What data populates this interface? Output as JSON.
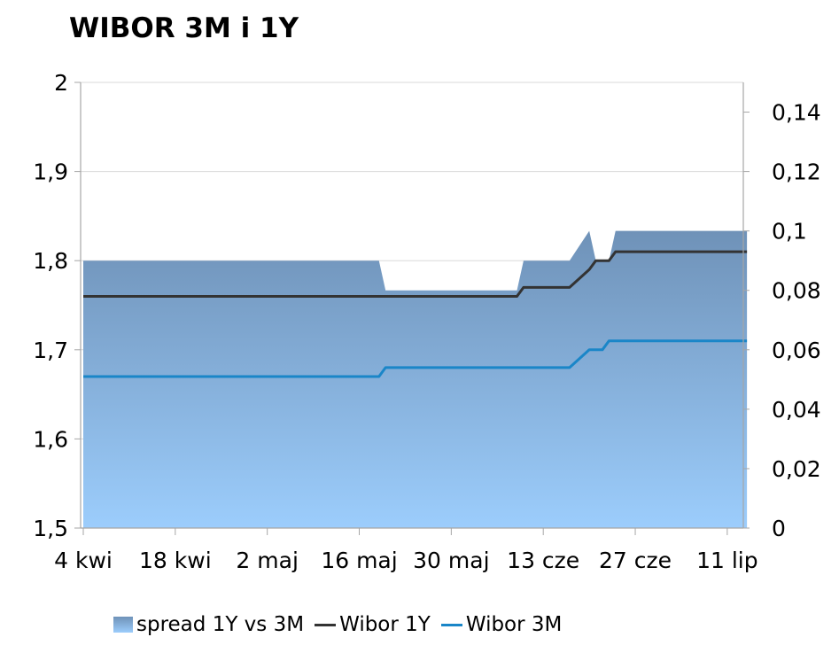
{
  "chart_data": {
    "type": "area+line",
    "title": "WIBOR 3M i 1Y",
    "xlabel": "",
    "ylabel_left": "",
    "ylabel_right": "",
    "x_tick_labels": [
      "4 kwi",
      "18 kwi",
      "2 maj",
      "16 maj",
      "30 maj",
      "13 cze",
      "27 cze",
      "11 lip"
    ],
    "y_left": {
      "range": [
        1.5,
        2
      ],
      "ticks": [
        "1,5",
        "1,6",
        "1,7",
        "1,8",
        "1,9",
        "2"
      ]
    },
    "y_right": {
      "range": [
        0,
        0.15
      ],
      "ticks": [
        "0",
        "0,02",
        "0,04",
        "0,06",
        "0,08",
        "0,1",
        "0,12",
        "0,14"
      ]
    },
    "grid": "horizontal",
    "legend_position": "bottom",
    "colors": {
      "area_top": "#6f92b8",
      "area_bottom": "#9ccdfc",
      "wibor_1y": "#333333",
      "wibor_3m": "#1a86c8"
    },
    "series": [
      {
        "name": "spread 1Y vs 3M",
        "kind": "area",
        "axis": "right",
        "points": [
          [
            "2011-04-04",
            0.09
          ],
          [
            "2011-05-19",
            0.09
          ],
          [
            "2011-05-20",
            0.08
          ],
          [
            "2011-06-09",
            0.08
          ],
          [
            "2011-06-10",
            0.09
          ],
          [
            "2011-06-17",
            0.09
          ],
          [
            "2011-06-20",
            0.1
          ],
          [
            "2011-06-21",
            0.09
          ],
          [
            "2011-06-23",
            0.09
          ],
          [
            "2011-06-24",
            0.1
          ],
          [
            "2011-07-14",
            0.1
          ]
        ]
      },
      {
        "name": "Wibor 1Y",
        "kind": "line",
        "axis": "left",
        "points": [
          [
            "2011-04-04",
            1.76
          ],
          [
            "2011-06-09",
            1.76
          ],
          [
            "2011-06-10",
            1.77
          ],
          [
            "2011-06-17",
            1.77
          ],
          [
            "2011-06-20",
            1.79
          ],
          [
            "2011-06-21",
            1.8
          ],
          [
            "2011-06-23",
            1.8
          ],
          [
            "2011-06-24",
            1.81
          ],
          [
            "2011-07-14",
            1.81
          ]
        ]
      },
      {
        "name": "Wibor 3M",
        "kind": "line",
        "axis": "left",
        "points": [
          [
            "2011-04-04",
            1.67
          ],
          [
            "2011-05-19",
            1.67
          ],
          [
            "2011-05-20",
            1.68
          ],
          [
            "2011-06-17",
            1.68
          ],
          [
            "2011-06-20",
            1.7
          ],
          [
            "2011-06-22",
            1.7
          ],
          [
            "2011-06-23",
            1.71
          ],
          [
            "2011-07-14",
            1.71
          ]
        ]
      }
    ]
  }
}
